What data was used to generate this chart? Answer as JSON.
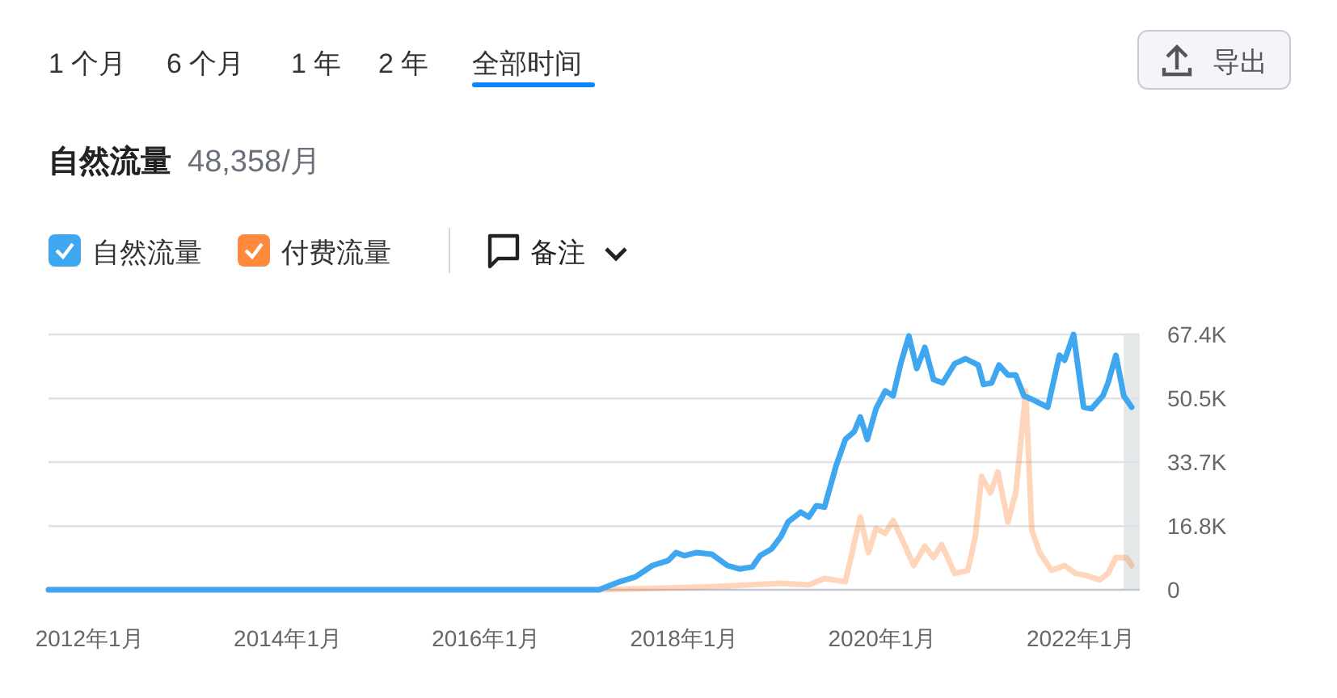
{
  "chart_data": {
    "type": "line",
    "title": "自然流量",
    "subtitle": "48,358/月",
    "annotations": [
      "1 个月",
      "6 个月",
      "1 年",
      "2 年",
      "全部时间",
      "导出",
      "备注"
    ],
    "legend": "top left",
    "grid": "y",
    "marker": "none",
    "line_style": "solid",
    "xlim": [
      "2011-08-03",
      "2022-08-07"
    ],
    "xticks": [
      {
        "value": "2012-01-01",
        "label": "2012年1月"
      },
      {
        "value": "2014-01-01",
        "label": "2014年1月"
      },
      {
        "value": "2016-01-01",
        "label": "2016年1月"
      },
      {
        "value": "2018-01-01",
        "label": "2018年1月"
      },
      {
        "value": "2020-01-01",
        "label": "2020年1月"
      },
      {
        "value": "2022-01-01",
        "label": "2022年1月"
      }
    ],
    "ylim": [
      0,
      67.4
    ],
    "yticks": [
      0,
      {
        "value": 16.8,
        "label": "16.8K"
      },
      {
        "value": 33.7,
        "label": "33.7K"
      },
      {
        "value": 50.5,
        "label": "50.5K"
      },
      {
        "value": 67.4,
        "label": "67.4K"
      }
    ],
    "bands": [
      {
        "axis": "x",
        "from": "2022-06-09",
        "to": "2022-08-07",
        "color": "#e3e8e9"
      }
    ],
    "series": [
      {
        "name": "付费流量",
        "color": "#ff8a3d",
        "x": [
          "2011-08-03",
          "2017-02-21",
          "2018-04-12",
          "2018-12-24",
          "2019-04-05",
          "2019-06-02",
          "2019-08-18",
          "2019-10-12",
          "2019-11-11",
          "2019-12-09",
          "2020-01-12",
          "2020-02-10",
          "2020-03-17",
          "2020-04-26",
          "2020-06-06",
          "2020-07-08",
          "2020-08-07",
          "2020-09-24",
          "2020-11-11",
          "2020-12-09",
          "2021-01-01",
          "2021-02-03",
          "2021-03-02",
          "2021-04-08",
          "2021-05-07",
          "2021-06-13",
          "2021-07-05",
          "2021-08-03",
          "2021-09-16",
          "2021-11-03",
          "2021-12-13",
          "2022-01-19",
          "2022-03-13",
          "2022-04-12",
          "2022-05-11",
          "2022-06-20",
          "2022-07-08"
        ],
        "values": [
          0,
          0,
          0.8,
          1.7,
          1.3,
          3.0,
          2.1,
          19.2,
          9.8,
          16.2,
          14.9,
          18.3,
          12.8,
          6.4,
          11.5,
          8.5,
          11.9,
          4.3,
          5.1,
          14.1,
          29.9,
          25.6,
          31.1,
          17.9,
          25.6,
          52.5,
          15.8,
          9.8,
          5.1,
          6.4,
          4.3,
          3.8,
          2.6,
          4.3,
          8.5,
          8.5,
          6.4
        ]
      },
      {
        "name": "自然流量",
        "color": "#3fa6f0",
        "x": [
          "2011-08-03",
          "2017-02-21",
          "2017-05-07",
          "2017-07-05",
          "2017-09-06",
          "2017-11-03",
          "2017-12-02",
          "2018-01-01",
          "2018-02-14",
          "2018-04-12",
          "2018-06-09",
          "2018-07-23",
          "2018-09-09",
          "2018-10-08",
          "2018-11-18",
          "2018-12-24",
          "2019-01-19",
          "2019-03-06",
          "2019-04-05",
          "2019-05-03",
          "2019-06-02",
          "2019-07-15",
          "2019-08-18",
          "2019-09-20",
          "2019-10-12",
          "2019-11-07",
          "2019-12-09",
          "2020-01-12",
          "2020-02-10",
          "2020-03-09",
          "2020-04-08",
          "2020-05-07",
          "2020-06-06",
          "2020-07-08",
          "2020-08-11",
          "2020-09-24",
          "2020-11-03",
          "2020-12-20",
          "2021-01-08",
          "2021-02-07",
          "2021-03-06",
          "2021-04-08",
          "2021-05-07",
          "2021-06-06",
          "2021-07-05",
          "2021-09-02",
          "2021-10-15",
          "2021-11-03",
          "2021-12-06",
          "2022-01-12",
          "2022-02-10",
          "2022-03-24",
          "2022-04-12",
          "2022-05-11",
          "2022-06-09",
          "2022-07-08"
        ],
        "values": [
          0,
          0,
          2.1,
          3.4,
          6.4,
          7.7,
          9.8,
          9.0,
          9.8,
          9.4,
          6.4,
          5.5,
          6.0,
          9.0,
          10.7,
          14.1,
          17.9,
          20.5,
          19.2,
          22.2,
          21.8,
          32.8,
          39.7,
          41.8,
          45.6,
          39.7,
          47.8,
          52.5,
          51.2,
          59.7,
          67.0,
          58.4,
          64.0,
          55.5,
          54.6,
          59.7,
          61.0,
          59.3,
          54.2,
          54.6,
          59.3,
          56.7,
          56.7,
          51.2,
          50.3,
          48.2,
          61.9,
          60.6,
          67.4,
          48.2,
          47.8,
          51.2,
          54.6,
          61.9,
          51.2,
          48.2
        ]
      }
    ]
  }
}
